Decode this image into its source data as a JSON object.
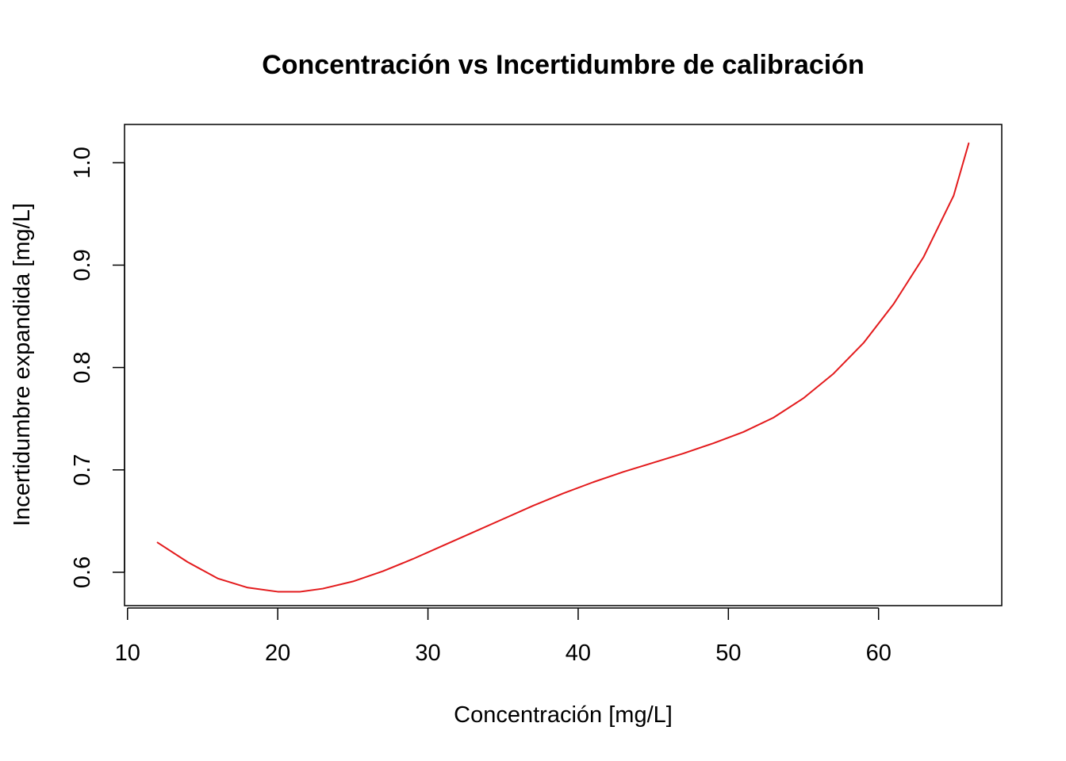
{
  "chart_data": {
    "type": "line",
    "title": "Concentración vs Incertidumbre de calibración",
    "xlabel": "Concentración [mg/L]",
    "ylabel": "Incertidumbre expandida [mg/L]",
    "xlim": [
      9.8,
      68.2
    ],
    "ylim": [
      0.5674,
      1.0374
    ],
    "x_ticks": [
      10,
      20,
      30,
      40,
      50,
      60
    ],
    "y_ticks": [
      0.6,
      0.7,
      0.8,
      0.9,
      1.0
    ],
    "x_tick_labels": [
      "10",
      "20",
      "30",
      "40",
      "50",
      "60"
    ],
    "y_tick_labels": [
      "0.6",
      "0.7",
      "0.8",
      "0.9",
      "1.0"
    ],
    "grid": false,
    "series": [
      {
        "color": "#e31a1c",
        "x": [
          12,
          14,
          16,
          18,
          20,
          21.5,
          23,
          25,
          27,
          29,
          31,
          33,
          35,
          37,
          39,
          41,
          43,
          45,
          47,
          49,
          51,
          53,
          55,
          57,
          59,
          61,
          63,
          65,
          66
        ],
        "y": [
          0.629,
          0.61,
          0.594,
          0.585,
          0.581,
          0.581,
          0.584,
          0.591,
          0.601,
          0.613,
          0.626,
          0.639,
          0.652,
          0.665,
          0.677,
          0.688,
          0.698,
          0.707,
          0.716,
          0.726,
          0.737,
          0.751,
          0.77,
          0.794,
          0.824,
          0.862,
          0.908,
          0.968,
          1.019
        ]
      }
    ]
  }
}
